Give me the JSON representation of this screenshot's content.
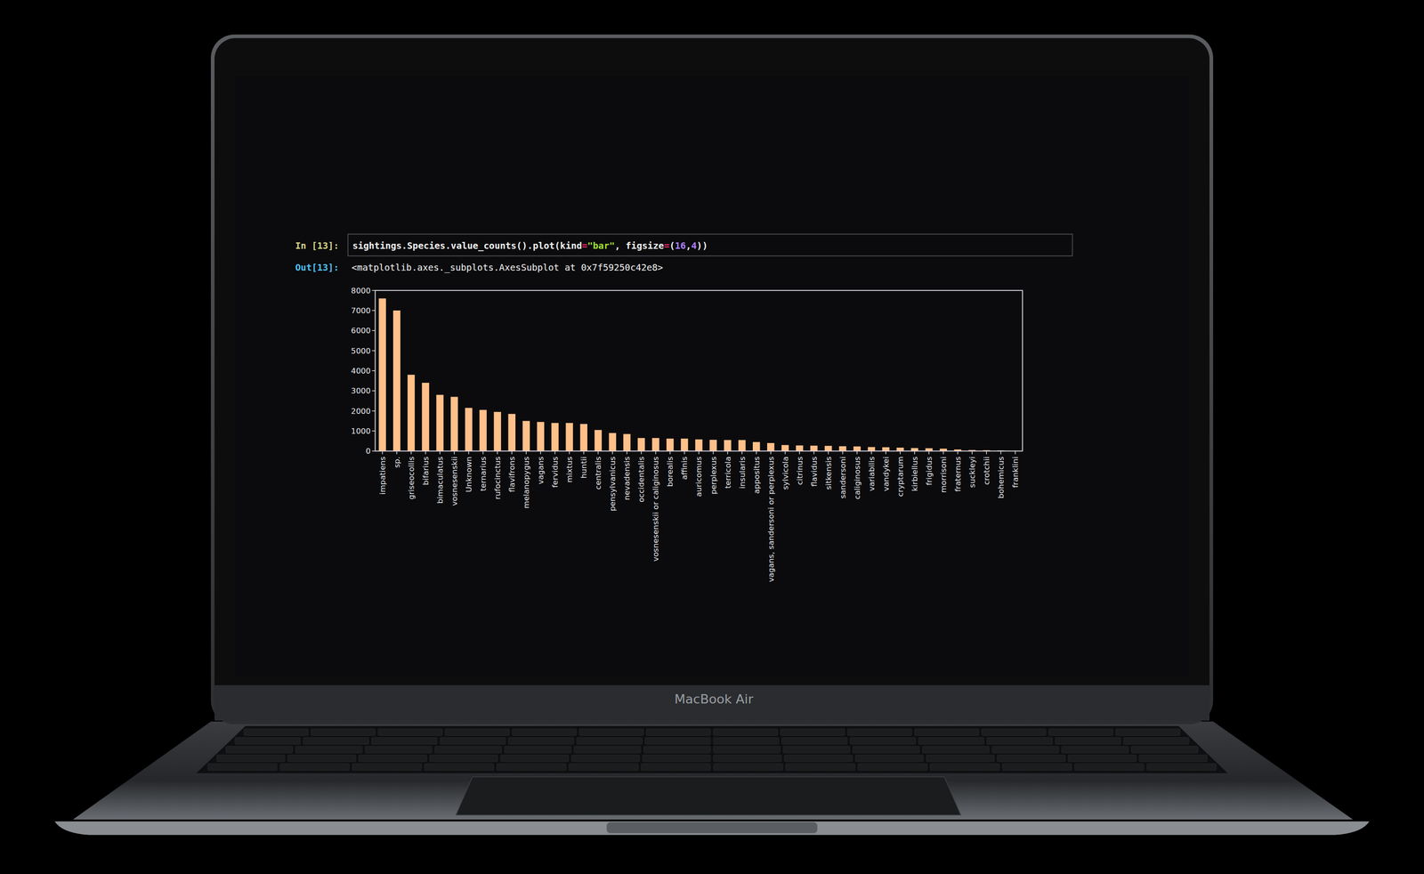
{
  "chart_data": {
    "type": "bar",
    "categories": [
      "impatiens",
      "sp.",
      "griseocollis",
      "bifarius",
      "bimaculatus",
      "vosnesenskii",
      "Unknown",
      "ternarius",
      "rufocinctus",
      "flavifrons",
      "melanopygus",
      "vagans",
      "fervidus",
      "mixtus",
      "huntii",
      "centralis",
      "pensylvanicus",
      "nevadensis",
      "occidentalis",
      "vosnesenskii or caliginosus",
      "borealis",
      "affinis",
      "auricomus",
      "perplexus",
      "terricola",
      "insularis",
      "appositus",
      "vagans, sandersoni or perplexus",
      "sylvicola",
      "citrinus",
      "flavidus",
      "sitkensis",
      "sandersoni",
      "caliginosus",
      "variabilis",
      "vandykei",
      "cryptarum",
      "kirbiellus",
      "frigidus",
      "morrisoni",
      "fraternus",
      "suckleyi",
      "crotchii",
      "bohemicus",
      "franklini"
    ],
    "values": [
      7600,
      7000,
      3800,
      3400,
      2800,
      2700,
      2150,
      2050,
      1950,
      1850,
      1500,
      1450,
      1400,
      1400,
      1350,
      1050,
      900,
      850,
      650,
      650,
      620,
      620,
      580,
      560,
      550,
      550,
      450,
      400,
      300,
      280,
      270,
      260,
      240,
      230,
      200,
      190,
      170,
      150,
      140,
      120,
      80,
      50,
      40,
      30,
      10
    ],
    "color": "#ffc08a",
    "ylim": [
      0,
      8000
    ],
    "yticks": [
      0,
      1000,
      2000,
      3000,
      4000,
      5000,
      6000,
      7000,
      8000
    ],
    "grid": false
  },
  "notebook": {
    "input_prompt": "In [13]:",
    "code": "sightings.Species.value_counts().plot(kind=\"bar\", figsize=(16,4))",
    "output_prompt": "Out[13]:",
    "output": "<matplotlib.axes._subplots.AxesSubplot at 0x7f59250c42e8>"
  },
  "device": {
    "label": "MacBook Air"
  }
}
